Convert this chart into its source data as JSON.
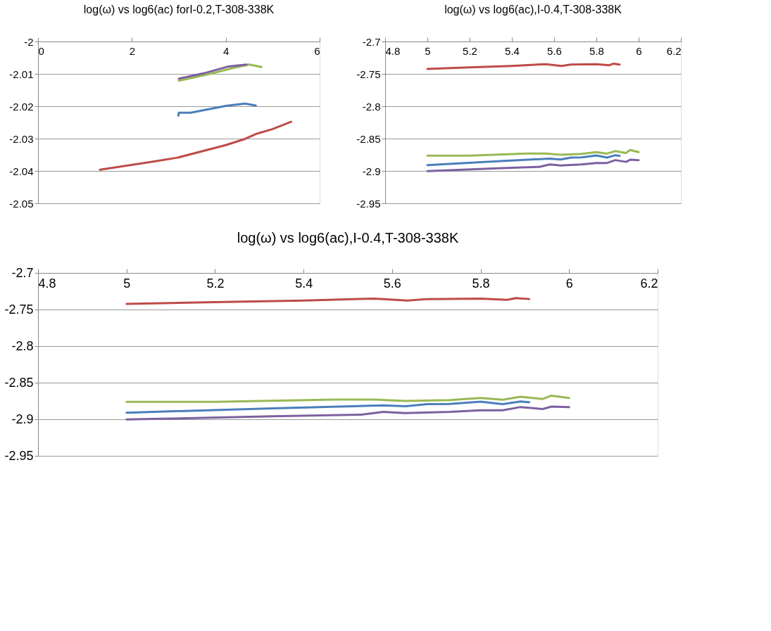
{
  "chart_data": [
    {
      "type": "line",
      "title": "log(ω) vs log6(ac) forI-0.2,T-308-338K",
      "xlim": [
        0,
        6
      ],
      "xticks": [
        0,
        2,
        4,
        6
      ],
      "ylim": [
        -2.05,
        -2
      ],
      "yticks": [
        -2,
        -2.01,
        -2.02,
        -2.03,
        -2.04,
        -2.05
      ],
      "grid": "y",
      "series": [
        {
          "color": "#4a7ebb",
          "x": [
            2.99,
            3.0,
            3.25,
            4.0,
            4.41,
            4.64
          ],
          "values": [
            -2.0229,
            -2.022,
            -2.022,
            -2.0199,
            -2.0192,
            -2.0198
          ]
        },
        {
          "color": "#be4b48",
          "x": [
            1.32,
            2.45,
            2.97,
            4.0,
            4.41,
            4.64,
            4.99,
            5.39
          ],
          "values": [
            -2.0396,
            -2.0371,
            -2.0359,
            -2.032,
            -2.0301,
            -2.0286,
            -2.0271,
            -2.0248
          ]
        },
        {
          "color": "#98b954",
          "x": [
            3.0,
            3.6,
            4.18,
            4.5,
            4.76
          ],
          "values": [
            -2.0121,
            -2.0102,
            -2.0081,
            -2.0071,
            -2.0079
          ]
        },
        {
          "color": "#7d60a0",
          "x": [
            3.0,
            3.54,
            4.06,
            4.44
          ],
          "values": [
            -2.0115,
            -2.0098,
            -2.0077,
            -2.0071
          ]
        }
      ]
    },
    {
      "type": "line",
      "title": "log(ω) vs log6(ac),I-0.4,T-308-338K",
      "xlim": [
        4.8,
        6.2
      ],
      "xticks": [
        4.8,
        5,
        5.2,
        5.4,
        5.6,
        5.8,
        6,
        6.2
      ],
      "ylim": [
        -2.95,
        -2.7
      ],
      "yticks": [
        -2.7,
        -2.75,
        -2.8,
        -2.85,
        -2.9,
        -2.95
      ],
      "grid": "y",
      "series": [
        {
          "color": "#4a7ebb",
          "x": [
            5.0,
            5.33,
            5.58,
            5.63,
            5.68,
            5.73,
            5.8,
            5.85,
            5.89,
            5.91
          ],
          "values": [
            -2.891,
            -2.885,
            -2.881,
            -2.8823,
            -2.8793,
            -2.879,
            -2.876,
            -2.8793,
            -2.8757,
            -2.8767
          ]
        },
        {
          "color": "#be4b48",
          "x": [
            5.0,
            5.2,
            5.4,
            5.56,
            5.635,
            5.68,
            5.8,
            5.86,
            5.88,
            5.91
          ],
          "values": [
            -2.7423,
            -2.74,
            -2.7377,
            -2.735,
            -2.7377,
            -2.7357,
            -2.735,
            -2.7367,
            -2.7343,
            -2.7357
          ]
        },
        {
          "color": "#98b954",
          "x": [
            5.0,
            5.2,
            5.47,
            5.56,
            5.63,
            5.73,
            5.8,
            5.85,
            5.89,
            5.94,
            5.96,
            6.0
          ],
          "values": [
            -2.8763,
            -2.8763,
            -2.873,
            -2.873,
            -2.875,
            -2.8737,
            -2.871,
            -2.8733,
            -2.8693,
            -2.8723,
            -2.8677,
            -2.871
          ]
        },
        {
          "color": "#7d60a0",
          "x": [
            5.0,
            5.33,
            5.53,
            5.58,
            5.63,
            5.73,
            5.8,
            5.85,
            5.89,
            5.94,
            5.96,
            6.0
          ],
          "values": [
            -2.9003,
            -2.896,
            -2.8937,
            -2.89,
            -2.8917,
            -2.89,
            -2.8877,
            -2.8877,
            -2.8833,
            -2.886,
            -2.8827,
            -2.8833
          ]
        }
      ]
    },
    {
      "type": "line",
      "title": "log(ω) vs log6(ac),I-0.4,T-308-338K",
      "xlim": [
        4.8,
        6.2
      ],
      "xticks": [
        4.8,
        5,
        5.2,
        5.4,
        5.6,
        5.8,
        6,
        6.2
      ],
      "ylim": [
        -2.95,
        -2.7
      ],
      "yticks": [
        -2.7,
        -2.75,
        -2.8,
        -2.85,
        -2.9,
        -2.95
      ],
      "grid": "y",
      "series": [
        {
          "color": "#4a7ebb",
          "x": [
            5.0,
            5.33,
            5.58,
            5.63,
            5.68,
            5.73,
            5.8,
            5.85,
            5.89,
            5.91
          ],
          "values": [
            -2.891,
            -2.885,
            -2.881,
            -2.8823,
            -2.8793,
            -2.879,
            -2.876,
            -2.8793,
            -2.8757,
            -2.8767
          ]
        },
        {
          "color": "#be4b48",
          "x": [
            5.0,
            5.2,
            5.4,
            5.56,
            5.635,
            5.68,
            5.8,
            5.86,
            5.88,
            5.91
          ],
          "values": [
            -2.7423,
            -2.74,
            -2.7377,
            -2.735,
            -2.7377,
            -2.7357,
            -2.735,
            -2.7367,
            -2.7343,
            -2.7357
          ]
        },
        {
          "color": "#98b954",
          "x": [
            5.0,
            5.2,
            5.47,
            5.56,
            5.63,
            5.73,
            5.8,
            5.85,
            5.89,
            5.94,
            5.96,
            6.0
          ],
          "values": [
            -2.8763,
            -2.8763,
            -2.873,
            -2.873,
            -2.875,
            -2.8737,
            -2.871,
            -2.8733,
            -2.8693,
            -2.8723,
            -2.8677,
            -2.871
          ]
        },
        {
          "color": "#7d60a0",
          "x": [
            5.0,
            5.33,
            5.53,
            5.58,
            5.63,
            5.73,
            5.8,
            5.85,
            5.89,
            5.94,
            5.96,
            6.0
          ],
          "values": [
            -2.9003,
            -2.896,
            -2.8937,
            -2.89,
            -2.8917,
            -2.89,
            -2.8877,
            -2.8877,
            -2.8833,
            -2.886,
            -2.8827,
            -2.8833
          ]
        }
      ]
    }
  ]
}
